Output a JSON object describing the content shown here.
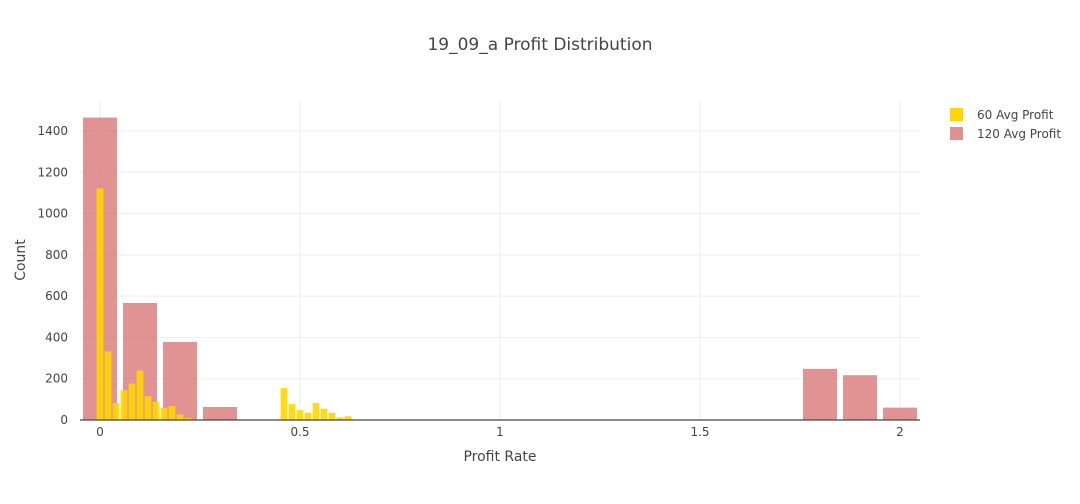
{
  "chart_data": {
    "type": "bar",
    "title": "19_09_a Profit Distribution",
    "xlabel": "Profit Rate",
    "ylabel": "Count",
    "xlim": [
      -0.05,
      2.05
    ],
    "ylim": [
      0,
      1550
    ],
    "x_ticks": [
      0,
      0.5,
      1,
      1.5,
      2
    ],
    "x_tick_labels": [
      "0",
      "0.5",
      "1",
      "1.5",
      "2"
    ],
    "y_ticks": [
      0,
      200,
      400,
      600,
      800,
      1000,
      1200,
      1400
    ],
    "y_tick_labels": [
      "0",
      "200",
      "400",
      "600",
      "800",
      "1000",
      "1200",
      "1400"
    ],
    "grid": true,
    "legend": "top-right",
    "overlay": true,
    "series": [
      {
        "name": "120 Avg Profit",
        "color": "#d87576",
        "opacity": 0.78,
        "bin_width": 0.1,
        "bins": [
          {
            "x": 0.0,
            "count": 1465
          },
          {
            "x": 0.1,
            "count": 567
          },
          {
            "x": 0.2,
            "count": 378
          },
          {
            "x": 0.3,
            "count": 63
          },
          {
            "x": 1.8,
            "count": 248
          },
          {
            "x": 1.9,
            "count": 217
          },
          {
            "x": 2.0,
            "count": 60
          }
        ]
      },
      {
        "name": "60 Avg Profit",
        "color": "#ffd600",
        "opacity": 0.9,
        "bin_width": 0.02,
        "bins": [
          {
            "x": 0.0,
            "count": 1122
          },
          {
            "x": 0.02,
            "count": 332
          },
          {
            "x": 0.04,
            "count": 82
          },
          {
            "x": 0.06,
            "count": 145
          },
          {
            "x": 0.08,
            "count": 176
          },
          {
            "x": 0.1,
            "count": 240
          },
          {
            "x": 0.12,
            "count": 115
          },
          {
            "x": 0.14,
            "count": 88
          },
          {
            "x": 0.16,
            "count": 60
          },
          {
            "x": 0.18,
            "count": 68
          },
          {
            "x": 0.2,
            "count": 27
          },
          {
            "x": 0.22,
            "count": 10
          },
          {
            "x": 0.46,
            "count": 155
          },
          {
            "x": 0.48,
            "count": 77
          },
          {
            "x": 0.5,
            "count": 48
          },
          {
            "x": 0.52,
            "count": 35
          },
          {
            "x": 0.54,
            "count": 82
          },
          {
            "x": 0.56,
            "count": 55
          },
          {
            "x": 0.58,
            "count": 35
          },
          {
            "x": 0.6,
            "count": 12
          },
          {
            "x": 0.62,
            "count": 18
          }
        ]
      }
    ],
    "legend_entries": [
      {
        "name": "60 Avg Profit",
        "color": "#ffd600"
      },
      {
        "name": "120 Avg Profit",
        "color": "#d87576"
      }
    ]
  }
}
